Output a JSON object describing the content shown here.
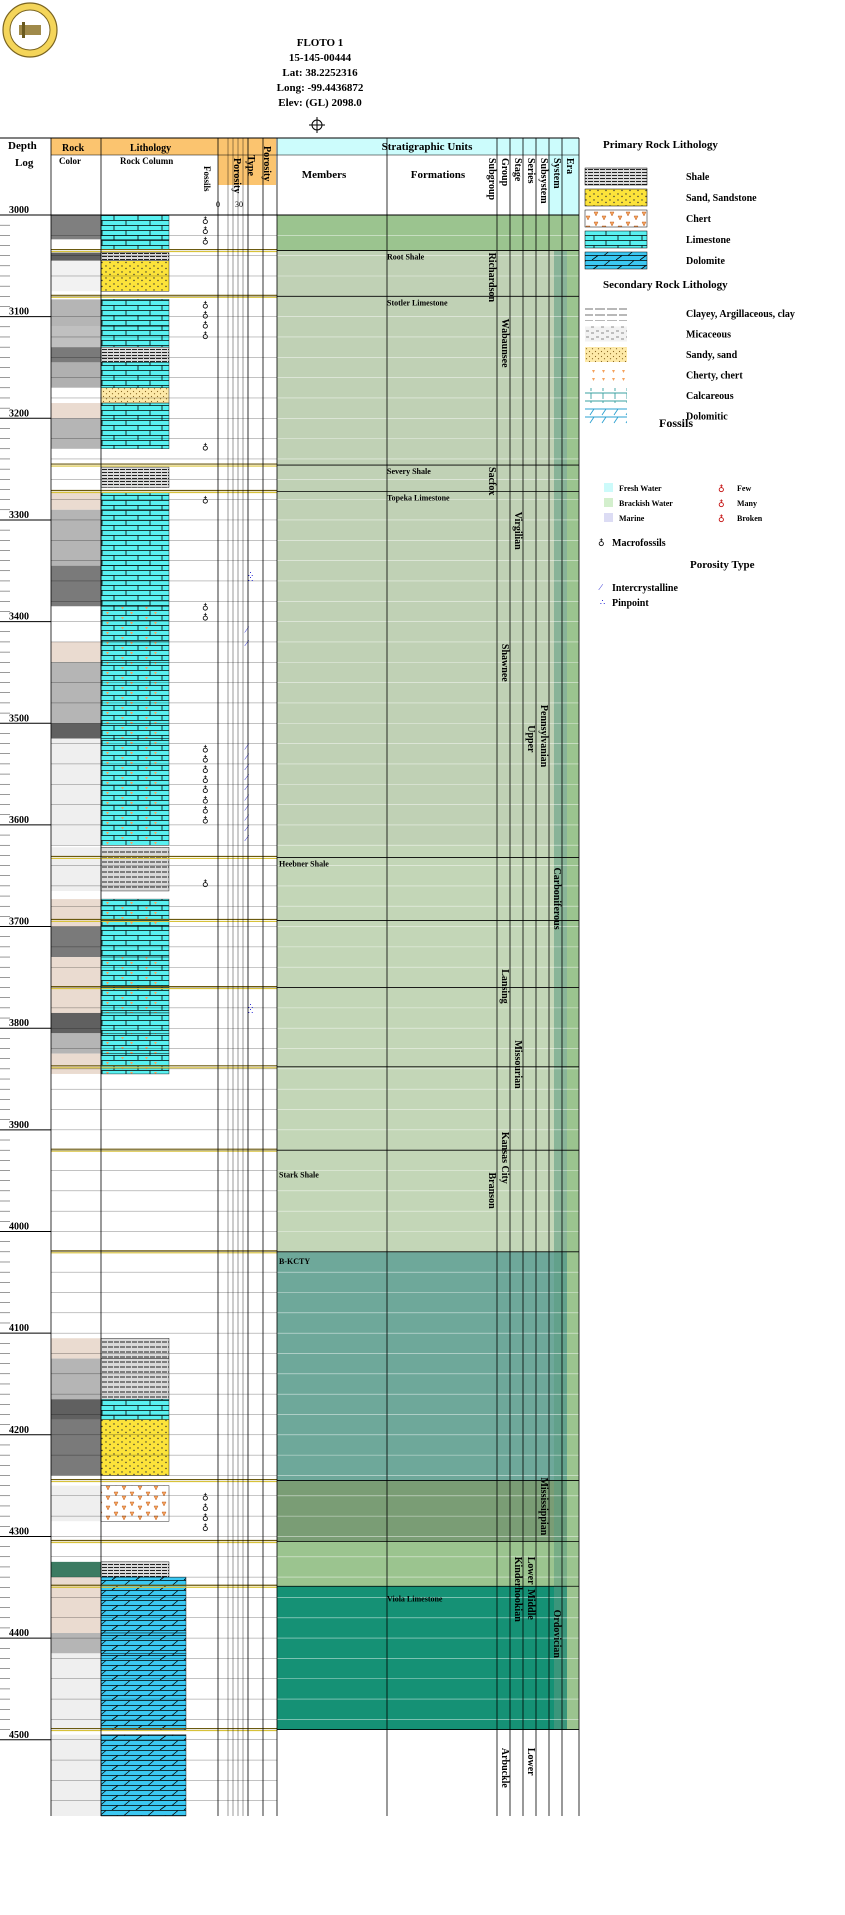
{
  "well": {
    "name": "FLOTO 1",
    "api": "15-145-00444",
    "lat": "Lat: 38.2252316",
    "long": "Long: -99.4436872",
    "elev": "Elev: (GL) 2098.0"
  },
  "headers": {
    "depth": "Depth",
    "log": "Log",
    "rock": "Rock",
    "color": "Color",
    "lithology": "Lithology",
    "rock_column": "Rock Column",
    "fossils": "Fossils",
    "porosity": "Porosity",
    "porosity_scale": [
      "0",
      "30"
    ],
    "type": "Type",
    "porosity2": "Porosity",
    "strat_units": "Stratigraphic Units",
    "members": "Members",
    "formations": "Formations",
    "vertical": [
      "Subgroup",
      "Group",
      "Stage",
      "Series",
      "Subsystem",
      "System",
      "Era"
    ]
  },
  "depth_labels": [
    "3000",
    "3100",
    "3200",
    "3300",
    "3400",
    "3500",
    "3600",
    "3700",
    "3800",
    "3900",
    "4000",
    "4100",
    "4200",
    "4300",
    "4400",
    "4500"
  ],
  "depth_range": [
    3000,
    4500
  ],
  "formations": [
    {
      "name": "Root Shale",
      "depth": 3035
    },
    {
      "name": "Stotler Limestone",
      "depth": 3080
    },
    {
      "name": "Severy Shale",
      "depth": 3246
    },
    {
      "name": "Topeka Limestone",
      "depth": 3272
    }
  ],
  "members": [
    {
      "name": "Heebner Shale",
      "depth": 3632
    },
    {
      "name": "Stark Shale",
      "depth": 3938
    },
    {
      "name": "B-KCTY",
      "depth": 4023
    }
  ],
  "formations_lower": [
    {
      "name": "Viola Limestone",
      "depth": 4355
    }
  ],
  "vertical_units": [
    {
      "name": "Richardson",
      "col": 0,
      "top": 3035,
      "bottom": 3120
    },
    {
      "name": "Wabaunsee",
      "col": 1,
      "top": 3100,
      "bottom": 3250
    },
    {
      "name": "Sacfox",
      "col": 0,
      "top": 3246,
      "bottom": 3290
    },
    {
      "name": "Virgilian",
      "col": 2,
      "top": 3290,
      "bottom": 3400
    },
    {
      "name": "Shawnee",
      "col": 1,
      "top": 3420,
      "bottom": 3570
    },
    {
      "name": "Pennsylvanian",
      "col": 4,
      "top": 3480,
      "bottom": 3570
    },
    {
      "name": "Upper",
      "col": 3,
      "top": 3500,
      "bottom": 3560
    },
    {
      "name": "Carboniferous",
      "col": 5,
      "top": 3640,
      "bottom": 3760
    },
    {
      "name": "Lansing",
      "col": 1,
      "top": 3740,
      "bottom": 3820
    },
    {
      "name": "Missourian",
      "col": 2,
      "top": 3810,
      "bottom": 3880
    },
    {
      "name": "Kansas City",
      "col": 1,
      "top": 3900,
      "bottom": 3960
    },
    {
      "name": "Branson",
      "col": 0,
      "top": 3940,
      "bottom": 3990
    },
    {
      "name": "Mississippian",
      "col": 4,
      "top": 4240,
      "bottom": 4330
    },
    {
      "name": "Lower",
      "col": 3,
      "top": 4318,
      "bottom": 4345
    },
    {
      "name": "Kinderhookian",
      "col": 2,
      "top": 4318,
      "bottom": 4390
    },
    {
      "name": "Middle",
      "col": 3,
      "top": 4350,
      "bottom": 4385
    },
    {
      "name": "Ordovician",
      "col": 5,
      "top": 4370,
      "bottom": 4450
    },
    {
      "name": "Arbuckle",
      "col": 1,
      "top": 4506,
      "bottom": 4560
    },
    {
      "name": "Lower",
      "col": 3,
      "top": 4506,
      "bottom": 4545
    }
  ],
  "strat_bands": [
    {
      "top": 3000,
      "bottom": 3035,
      "color": "#9bc48f"
    },
    {
      "top": 3035,
      "bottom": 3620,
      "color": "#c0d1b5"
    },
    {
      "top": 3620,
      "bottom": 3760,
      "color": "#c3d6b7"
    },
    {
      "top": 3760,
      "bottom": 4020,
      "color": "#c3d6b7"
    },
    {
      "top": 4020,
      "bottom": 4245,
      "color": "#6ea89a"
    },
    {
      "top": 4245,
      "bottom": 4305,
      "color": "#7a9d75"
    },
    {
      "top": 4305,
      "bottom": 4349,
      "color": "#9bc48f"
    },
    {
      "top": 4349,
      "bottom": 4490,
      "color": "#159175"
    }
  ],
  "rock_intervals": [
    {
      "top": 3000,
      "bottom": 3024,
      "color": "#7f7f7f",
      "lith": "limestone"
    },
    {
      "top": 3024,
      "bottom": 3034,
      "color": "#ffffff",
      "lith": "limestone"
    },
    {
      "top": 3037,
      "bottom": 3045,
      "color": "#606060",
      "lith": "shale"
    },
    {
      "top": 3045,
      "bottom": 3075,
      "color": "#f2f2f2",
      "lith": "sand"
    },
    {
      "top": 3083,
      "bottom": 3110,
      "color": "#b5b5b5",
      "lith": "limestone"
    },
    {
      "top": 3110,
      "bottom": 3130,
      "color": "#c0c0c0",
      "lith": "limestone"
    },
    {
      "top": 3130,
      "bottom": 3145,
      "color": "#7a7a7a",
      "lith": "shale"
    },
    {
      "top": 3145,
      "bottom": 3170,
      "color": "#b0b0b0",
      "lith": "limestone"
    },
    {
      "top": 3170,
      "bottom": 3185,
      "color": "#ffffff",
      "lith": "sandy"
    },
    {
      "top": 3185,
      "bottom": 3200,
      "color": "#eadbd0",
      "lith": "limestone"
    },
    {
      "top": 3200,
      "bottom": 3230,
      "color": "#b5b5b5",
      "lith": "limestone"
    },
    {
      "top": 3248,
      "bottom": 3268,
      "color": "#ffffff",
      "lith": "shale"
    },
    {
      "top": 3273,
      "bottom": 3290,
      "color": "#eadbd0",
      "lith": "limestone"
    },
    {
      "top": 3290,
      "bottom": 3345,
      "color": "#b5b5b5",
      "lith": "limestone"
    },
    {
      "top": 3345,
      "bottom": 3385,
      "color": "#7a7a7a",
      "lith": "limestone"
    },
    {
      "top": 3385,
      "bottom": 3420,
      "color": "#ffffff",
      "lith": "chertylime"
    },
    {
      "top": 3420,
      "bottom": 3440,
      "color": "#eadbd0",
      "lith": "chertylime"
    },
    {
      "top": 3440,
      "bottom": 3500,
      "color": "#b5b5b5",
      "lith": "chertylime"
    },
    {
      "top": 3500,
      "bottom": 3515,
      "color": "#606060",
      "lith": "chertylime"
    },
    {
      "top": 3515,
      "bottom": 3620,
      "color": "#efefef",
      "lith": "chertylime"
    },
    {
      "top": 3622,
      "bottom": 3665,
      "color": "#efefef",
      "lith": "shalelime"
    },
    {
      "top": 3673,
      "bottom": 3700,
      "color": "#eadbd0",
      "lith": "chertylime"
    },
    {
      "top": 3700,
      "bottom": 3730,
      "color": "#7a7a7a",
      "lith": "limestone"
    },
    {
      "top": 3730,
      "bottom": 3760,
      "color": "#eadbd0",
      "lith": "chertylime"
    },
    {
      "top": 3760,
      "bottom": 3785,
      "color": "#eadbd0",
      "lith": "chertylime"
    },
    {
      "top": 3785,
      "bottom": 3805,
      "color": "#606060",
      "lith": "limestone"
    },
    {
      "top": 3805,
      "bottom": 3825,
      "color": "#b5b5b5",
      "lith": "chertylime"
    },
    {
      "top": 3825,
      "bottom": 3845,
      "color": "#eadbd0",
      "lith": "chertylime"
    },
    {
      "top": 4105,
      "bottom": 4125,
      "color": "#eadbd0",
      "lith": "shalelime"
    },
    {
      "top": 4125,
      "bottom": 4165,
      "color": "#b5b5b5",
      "lith": "shalelime"
    },
    {
      "top": 4165,
      "bottom": 4185,
      "color": "#606060",
      "lith": "limestone"
    },
    {
      "top": 4185,
      "bottom": 4240,
      "color": "#7a7a7a",
      "lith": "sand"
    },
    {
      "top": 4250,
      "bottom": 4285,
      "color": "#efefef",
      "lith": "chert"
    },
    {
      "top": 4325,
      "bottom": 4340,
      "color": "#3c7b62",
      "lith": "shale"
    },
    {
      "top": 4340,
      "bottom": 4395,
      "color": "#eadbd0",
      "lith": "dolomite"
    },
    {
      "top": 4395,
      "bottom": 4415,
      "color": "#b5b5b5",
      "lith": "dolomite"
    },
    {
      "top": 4415,
      "bottom": 4490,
      "color": "#efefef",
      "lith": "dolomite"
    },
    {
      "top": 4495,
      "bottom": 4575,
      "color": "#efefef",
      "lith": "dolomite"
    }
  ],
  "legend": {
    "primary_title": "Primary Rock Lithology",
    "primary": [
      {
        "key": "shale",
        "label": "Shale"
      },
      {
        "key": "sand",
        "label": "Sand, Sandstone"
      },
      {
        "key": "chert",
        "label": "Chert"
      },
      {
        "key": "limestone",
        "label": "Limestone"
      },
      {
        "key": "dolomite",
        "label": "Dolomite"
      }
    ],
    "secondary_title": "Secondary Rock Lithology",
    "secondary": [
      {
        "key": "clayey",
        "label": "Clayey, Argillaceous, clay"
      },
      {
        "key": "micaceous",
        "label": "Micaceous"
      },
      {
        "key": "sandy",
        "label": "Sandy, sand"
      },
      {
        "key": "cherty",
        "label": "Cherty, chert"
      },
      {
        "key": "calcareous",
        "label": "Calcareous"
      },
      {
        "key": "dolomitic",
        "label": "Dolomitic"
      }
    ],
    "fossils_title": "Fossils",
    "fossil_env": [
      {
        "label": "Fresh Water",
        "color": "#ccfafa"
      },
      {
        "label": "Brackish Water",
        "color": "#d3efcd"
      },
      {
        "label": "Marine",
        "color": "#dcdcf4"
      }
    ],
    "fossil_abundance": [
      "Few",
      "Many",
      "Broken"
    ],
    "macro_label": "Macrofossils",
    "porosity_title": "Porosity Type",
    "porosity_types": [
      "Intercrystalline",
      "Pinpoint"
    ]
  },
  "colors": {
    "header_orange": "#fbc46f",
    "header_cyan": "#ccfcfc",
    "limestone": "#59f0f0",
    "dolomite": "#3cc8f2",
    "sand": "#fce33a"
  }
}
